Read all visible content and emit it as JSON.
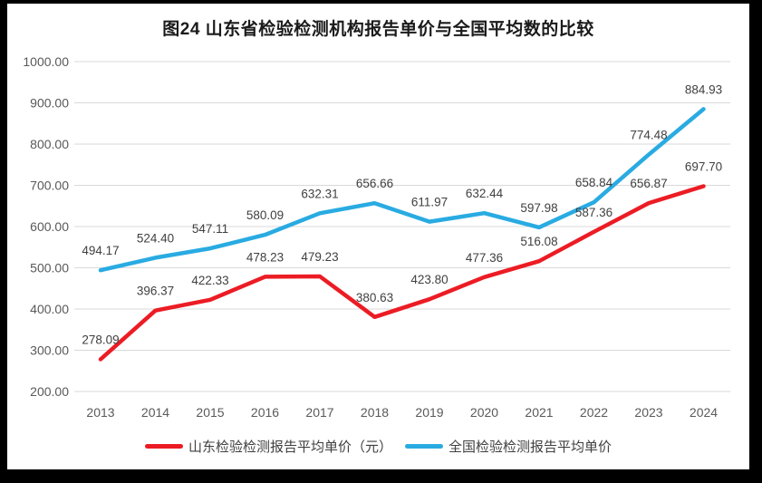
{
  "title": "图24  山东省检验检测机构报告单价与全国平均数的比较",
  "chart_data": {
    "type": "line",
    "categories": [
      "2013",
      "2014",
      "2015",
      "2016",
      "2017",
      "2018",
      "2019",
      "2020",
      "2021",
      "2022",
      "2023",
      "2024"
    ],
    "series": [
      {
        "name": "山东检验检测报告平均单价（元）",
        "color": "#ec1c24",
        "values": [
          278.09,
          396.37,
          422.33,
          478.23,
          479.23,
          380.63,
          423.8,
          477.36,
          516.08,
          587.36,
          656.87,
          697.7
        ]
      },
      {
        "name": "全国检验检测报告平均单价",
        "color": "#29abe2",
        "values": [
          494.17,
          524.4,
          547.11,
          580.09,
          632.31,
          656.66,
          611.97,
          632.44,
          597.98,
          658.84,
          774.48,
          884.93
        ]
      }
    ],
    "xlabel": "",
    "ylabel": "",
    "ylim": [
      200,
      1000
    ],
    "ytick_step": 100,
    "ytick_labels": [
      "200.00",
      "300.00",
      "400.00",
      "500.00",
      "600.00",
      "700.00",
      "800.00",
      "900.00",
      "1000.00"
    ],
    "label_decimals": 2,
    "grid": true,
    "legend_position": "bottom"
  },
  "colors": {
    "background": "#ffffff",
    "frame": "#000000",
    "gridline": "#d9d9d9",
    "axis_text": "#595959",
    "data_label_text": "#404040",
    "title_text": "#1a1a1a",
    "legend_text": "#404040",
    "series_shandong": "#ec1c24",
    "series_national": "#29abe2"
  }
}
